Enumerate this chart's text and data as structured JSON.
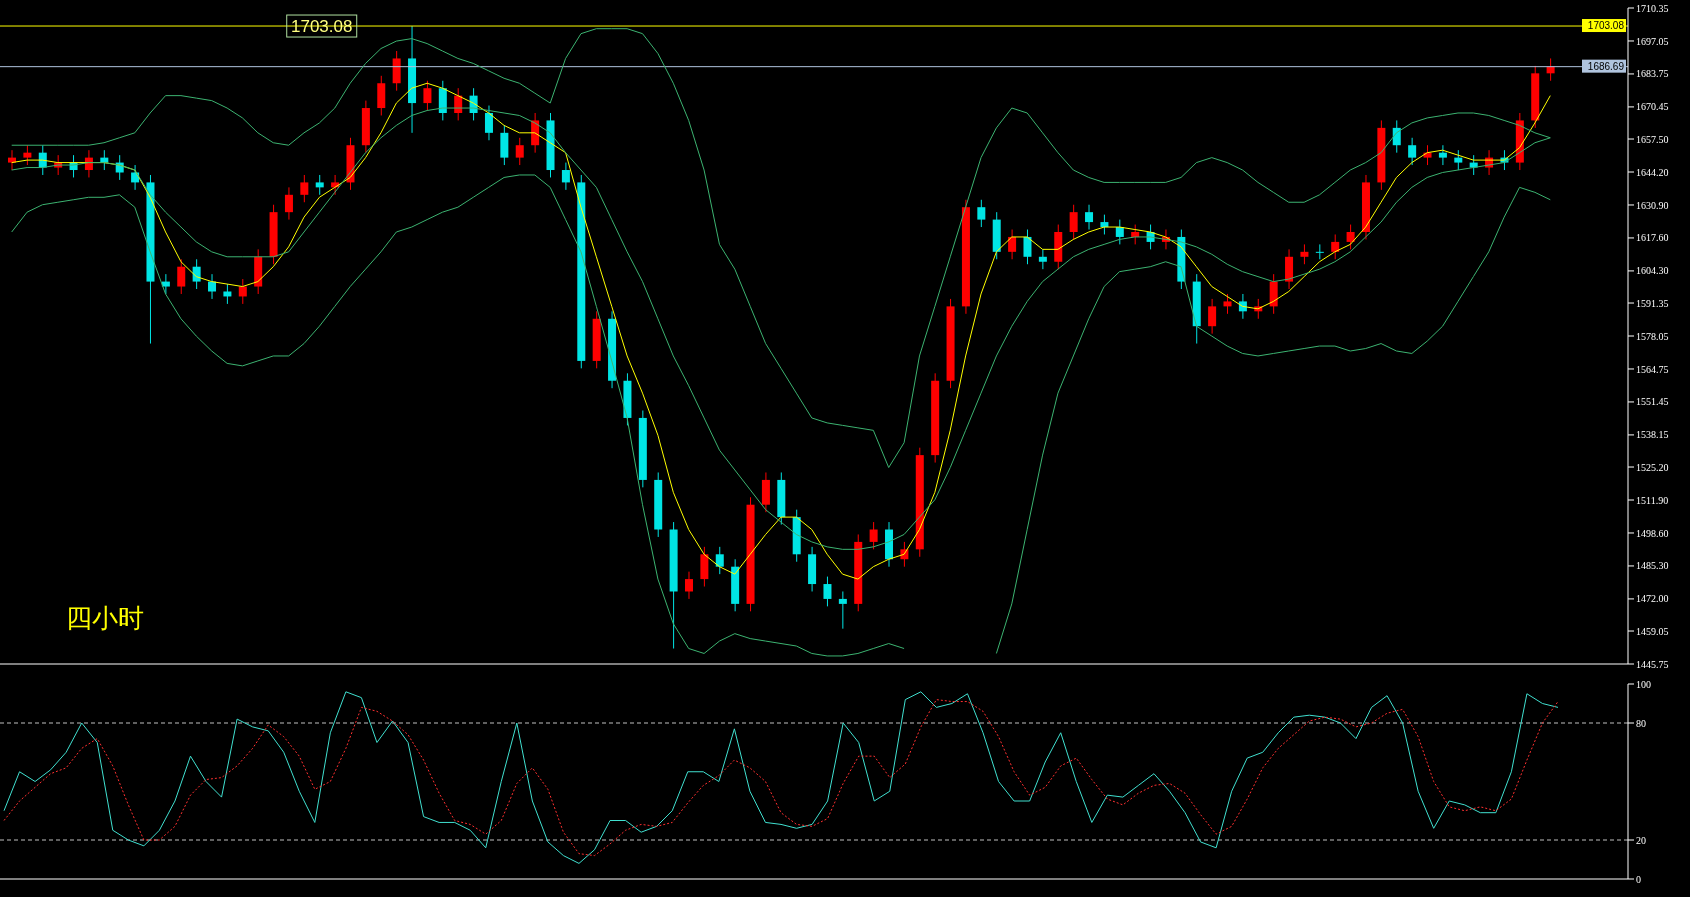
{
  "chart_data": [
    {
      "type": "candlestick",
      "categories": [
        null,
        null,
        null,
        null,
        null,
        null,
        null,
        null,
        null,
        null,
        null,
        null,
        null,
        null,
        null,
        null,
        null,
        null,
        null,
        null,
        null,
        null,
        null,
        null,
        null,
        null,
        null,
        null,
        null,
        null,
        null,
        null,
        null,
        null,
        null,
        null,
        null,
        null,
        null,
        null,
        null,
        null,
        null,
        null,
        null,
        null,
        null,
        null,
        null,
        null,
        null,
        null,
        null,
        null,
        null,
        null,
        null,
        null,
        null,
        null,
        null,
        null,
        null,
        null,
        null,
        null,
        null,
        null,
        null,
        null,
        null,
        null,
        null,
        null,
        null,
        null,
        null,
        null,
        null,
        null,
        null,
        null,
        null,
        null,
        null,
        null,
        null,
        null,
        null,
        null,
        null,
        null,
        null,
        null,
        null,
        null,
        null,
        null,
        null,
        null,
        null
      ],
      "ohlc": [
        [
          1648,
          1653,
          1645,
          1650
        ],
        [
          1650,
          1655,
          1647,
          1652
        ],
        [
          1652,
          1655,
          1643,
          1646
        ],
        [
          1646,
          1651,
          1643,
          1648
        ],
        [
          1648,
          1651,
          1642,
          1645
        ],
        [
          1645,
          1653,
          1642,
          1650
        ],
        [
          1650,
          1653,
          1645,
          1648
        ],
        [
          1648,
          1651,
          1641,
          1644
        ],
        [
          1644,
          1647,
          1637,
          1640
        ],
        [
          1640,
          1643,
          1575,
          1600
        ],
        [
          1600,
          1603,
          1595,
          1598
        ],
        [
          1598,
          1609,
          1595,
          1606
        ],
        [
          1606,
          1609,
          1597,
          1600
        ],
        [
          1600,
          1603,
          1593,
          1596
        ],
        [
          1596,
          1599,
          1591,
          1594
        ],
        [
          1594,
          1601,
          1591,
          1598
        ],
        [
          1598,
          1613,
          1595,
          1610
        ],
        [
          1610,
          1631,
          1607,
          1628
        ],
        [
          1628,
          1638,
          1625,
          1635
        ],
        [
          1635,
          1643,
          1632,
          1640
        ],
        [
          1640,
          1643,
          1635,
          1638
        ],
        [
          1638,
          1643,
          1635,
          1640
        ],
        [
          1640,
          1658,
          1637,
          1655
        ],
        [
          1655,
          1673,
          1652,
          1670
        ],
        [
          1670,
          1683,
          1667,
          1680
        ],
        [
          1680,
          1693,
          1677,
          1690
        ],
        [
          1690,
          1703.08,
          1660,
          1672
        ],
        [
          1672,
          1681,
          1669,
          1678
        ],
        [
          1678,
          1681,
          1665,
          1668
        ],
        [
          1668,
          1678,
          1665,
          1675
        ],
        [
          1675,
          1678,
          1665,
          1668
        ],
        [
          1668,
          1671,
          1657,
          1660
        ],
        [
          1660,
          1663,
          1647,
          1650
        ],
        [
          1650,
          1658,
          1647,
          1655
        ],
        [
          1655,
          1668,
          1652,
          1665
        ],
        [
          1665,
          1668,
          1642,
          1645
        ],
        [
          1645,
          1648,
          1637,
          1640
        ],
        [
          1640,
          1643,
          1565,
          1568
        ],
        [
          1568,
          1588,
          1565,
          1585
        ],
        [
          1585,
          1588,
          1557,
          1560
        ],
        [
          1560,
          1563,
          1542,
          1545
        ],
        [
          1545,
          1548,
          1517,
          1520
        ],
        [
          1520,
          1523,
          1497,
          1500
        ],
        [
          1500,
          1503,
          1452,
          1475
        ],
        [
          1475,
          1483,
          1472,
          1480
        ],
        [
          1480,
          1493,
          1477,
          1490
        ],
        [
          1490,
          1493,
          1482,
          1485
        ],
        [
          1485,
          1488,
          1467,
          1470
        ],
        [
          1470,
          1513,
          1467,
          1510
        ],
        [
          1510,
          1523,
          1507,
          1520
        ],
        [
          1520,
          1523,
          1502,
          1505
        ],
        [
          1505,
          1508,
          1487,
          1490
        ],
        [
          1490,
          1493,
          1475,
          1478
        ],
        [
          1478,
          1481,
          1469,
          1472
        ],
        [
          1472,
          1475,
          1460,
          1470
        ],
        [
          1470,
          1498,
          1467,
          1495
        ],
        [
          1495,
          1503,
          1492,
          1500
        ],
        [
          1500,
          1503,
          1485,
          1488
        ],
        [
          1488,
          1495,
          1485,
          1492
        ],
        [
          1492,
          1533,
          1489,
          1530
        ],
        [
          1530,
          1563,
          1527,
          1560
        ],
        [
          1560,
          1593,
          1557,
          1590
        ],
        [
          1590,
          1633,
          1587,
          1630
        ],
        [
          1630,
          1633,
          1622,
          1625
        ],
        [
          1625,
          1628,
          1609,
          1612
        ],
        [
          1612,
          1621,
          1609,
          1618
        ],
        [
          1618,
          1621,
          1607,
          1610
        ],
        [
          1610,
          1613,
          1605,
          1608
        ],
        [
          1608,
          1623,
          1605,
          1620
        ],
        [
          1620,
          1631,
          1617,
          1628
        ],
        [
          1628,
          1631,
          1621,
          1624
        ],
        [
          1624,
          1627,
          1619,
          1622
        ],
        [
          1622,
          1625,
          1615,
          1618
        ],
        [
          1618,
          1623,
          1615,
          1620
        ],
        [
          1620,
          1623,
          1613,
          1616
        ],
        [
          1616,
          1621,
          1613,
          1618
        ],
        [
          1618,
          1621,
          1597,
          1600
        ],
        [
          1600,
          1603,
          1575,
          1582
        ],
        [
          1582,
          1593,
          1579,
          1590
        ],
        [
          1590,
          1595,
          1587,
          1592
        ],
        [
          1592,
          1595,
          1585,
          1588
        ],
        [
          1588,
          1593,
          1585,
          1590
        ],
        [
          1590,
          1603,
          1587,
          1600
        ],
        [
          1600,
          1613,
          1597,
          1610
        ],
        [
          1610,
          1615,
          1607,
          1612
        ],
        [
          1612,
          1615,
          1609,
          1612
        ],
        [
          1612,
          1619,
          1609,
          1616
        ],
        [
          1616,
          1623,
          1613,
          1620
        ],
        [
          1620,
          1643,
          1617,
          1640
        ],
        [
          1640,
          1665,
          1637,
          1662
        ],
        [
          1662,
          1665,
          1652,
          1655
        ],
        [
          1655,
          1658,
          1647,
          1650
        ],
        [
          1650,
          1655,
          1647,
          1652
        ],
        [
          1652,
          1655,
          1647,
          1650
        ],
        [
          1650,
          1653,
          1645,
          1648
        ],
        [
          1648,
          1651,
          1643,
          1646
        ],
        [
          1646,
          1653,
          1643,
          1650
        ],
        [
          1650,
          1653,
          1645,
          1648
        ],
        [
          1648,
          1668,
          1645,
          1665
        ],
        [
          1665,
          1687,
          1662,
          1684
        ],
        [
          1684,
          1690,
          1681,
          1686.69
        ]
      ],
      "colors": [
        "#ff0000",
        "#ff0000",
        "#00e5e5",
        "#ff0000",
        "#00e5e5",
        "#ff0000",
        "#00e5e5",
        "#00e5e5",
        "#00e5e5",
        "#00e5e5",
        "#00e5e5",
        "#ff0000",
        "#00e5e5",
        "#00e5e5",
        "#00e5e5",
        "#ff0000",
        "#ff0000",
        "#ff0000",
        "#ff0000",
        "#ff0000",
        "#00e5e5",
        "#ff0000",
        "#ff0000",
        "#ff0000",
        "#ff0000",
        "#ff0000",
        "#00e5e5",
        "#ff0000",
        "#00e5e5",
        "#ff0000",
        "#00e5e5",
        "#00e5e5",
        "#00e5e5",
        "#ff0000",
        "#ff0000",
        "#00e5e5",
        "#00e5e5",
        "#00e5e5",
        "#ff0000",
        "#00e5e5",
        "#00e5e5",
        "#00e5e5",
        "#00e5e5",
        "#00e5e5",
        "#ff0000",
        "#ff0000",
        "#00e5e5",
        "#00e5e5",
        "#ff0000",
        "#ff0000",
        "#00e5e5",
        "#00e5e5",
        "#00e5e5",
        "#00e5e5",
        "#00e5e5",
        "#ff0000",
        "#ff0000",
        "#00e5e5",
        "#ff0000",
        "#ff0000",
        "#ff0000",
        "#ff0000",
        "#ff0000",
        "#00e5e5",
        "#00e5e5",
        "#ff0000",
        "#00e5e5",
        "#00e5e5",
        "#ff0000",
        "#ff0000",
        "#00e5e5",
        "#00e5e5",
        "#00e5e5",
        "#ff0000",
        "#00e5e5",
        "#ff0000",
        "#00e5e5",
        "#00e5e5",
        "#ff0000",
        "#ff0000",
        "#00e5e5",
        "#ff0000",
        "#ff0000",
        "#ff0000",
        "#ff0000",
        "#00e5e5",
        "#ff0000",
        "#ff0000",
        "#ff0000",
        "#ff0000",
        "#00e5e5",
        "#00e5e5",
        "#ff0000",
        "#00e5e5",
        "#00e5e5",
        "#00e5e5",
        "#ff0000",
        "#00e5e5",
        "#ff0000",
        "#ff0000",
        "#ff0000"
      ],
      "series": [
        {
          "type": "line",
          "color": "#ffff00",
          "values": [
            1648,
            1649,
            1649,
            1648,
            1648,
            1648,
            1648,
            1647,
            1645,
            1634,
            1620,
            1608,
            1602,
            1600,
            1599,
            1598,
            1600,
            1606,
            1614,
            1626,
            1634,
            1638,
            1642,
            1650,
            1660,
            1672,
            1678,
            1680,
            1678,
            1675,
            1672,
            1668,
            1663,
            1660,
            1660,
            1656,
            1652,
            1630,
            1610,
            1590,
            1570,
            1555,
            1538,
            1515,
            1500,
            1490,
            1485,
            1482,
            1490,
            1498,
            1505,
            1505,
            1500,
            1490,
            1482,
            1480,
            1485,
            1488,
            1490,
            1500,
            1515,
            1540,
            1570,
            1595,
            1612,
            1618,
            1618,
            1613,
            1613,
            1617,
            1620,
            1622,
            1622,
            1621,
            1620,
            1618,
            1614,
            1606,
            1598,
            1594,
            1590,
            1589,
            1592,
            1596,
            1602,
            1608,
            1612,
            1615,
            1622,
            1632,
            1642,
            1648,
            1652,
            1653,
            1651,
            1649,
            1649,
            1649,
            1654,
            1664,
            1675
          ]
        },
        {
          "type": "line",
          "color": "#3cb371",
          "values": [
            1655,
            1655,
            1655,
            1655,
            1655,
            1655,
            1656,
            1658,
            1660,
            1668,
            1675,
            1675,
            1674,
            1673,
            1670,
            1666,
            1660,
            1656,
            1655,
            1660,
            1664,
            1670,
            1680,
            1688,
            1694,
            1697,
            1698,
            1696,
            1693,
            1690,
            1688,
            1685,
            1682,
            1680,
            1676,
            1672,
            1690,
            1700,
            1702,
            1702,
            1702,
            1700,
            1692,
            1680,
            1665,
            1645,
            1615,
            1605,
            1590,
            1575,
            1565,
            1555,
            1545,
            1543,
            1542,
            1541,
            1540,
            1525,
            1535,
            1570,
            1590,
            1610,
            1630,
            1650,
            1662,
            1670,
            1668,
            1660,
            1652,
            1645,
            1642,
            1640,
            1640,
            1640,
            1640,
            1640,
            1642,
            1648,
            1650,
            1648,
            1645,
            1640,
            1636,
            1632,
            1632,
            1635,
            1640,
            1645,
            1648,
            1652,
            1660,
            1664,
            1666,
            1667,
            1668,
            1668,
            1667,
            1665,
            1663,
            1660,
            1658
          ]
        },
        {
          "type": "line",
          "color": "#3cb371",
          "values": [
            1645,
            1646,
            1646,
            1647,
            1647,
            1648,
            1648,
            1647,
            1645,
            1635,
            1628,
            1622,
            1616,
            1612,
            1610,
            1610,
            1610,
            1610,
            1612,
            1620,
            1628,
            1636,
            1644,
            1652,
            1658,
            1663,
            1667,
            1669,
            1670,
            1670,
            1670,
            1669,
            1668,
            1667,
            1664,
            1660,
            1652,
            1645,
            1638,
            1625,
            1612,
            1600,
            1585,
            1570,
            1558,
            1545,
            1532,
            1524,
            1516,
            1508,
            1503,
            1498,
            1495,
            1493,
            1492,
            1492,
            1493,
            1495,
            1498,
            1505,
            1512,
            1525,
            1540,
            1555,
            1570,
            1582,
            1592,
            1600,
            1605,
            1610,
            1613,
            1615,
            1617,
            1618,
            1618,
            1617,
            1616,
            1614,
            1611,
            1607,
            1604,
            1602,
            1600,
            1601,
            1603,
            1605,
            1608,
            1612,
            1618,
            1624,
            1632,
            1638,
            1642,
            1644,
            1645,
            1646,
            1647,
            1648,
            1652,
            1656,
            1658
          ]
        },
        {
          "type": "line",
          "color": "#3cb371",
          "values": [
            1620,
            1628,
            1631,
            1632,
            1633,
            1634,
            1634,
            1635,
            1630,
            1612,
            1595,
            1585,
            1578,
            1572,
            1567,
            1566,
            1568,
            1570,
            1570,
            1575,
            1582,
            1590,
            1598,
            1605,
            1612,
            1620,
            1622,
            1625,
            1628,
            1630,
            1634,
            1638,
            1642,
            1643,
            1643,
            1638,
            1625,
            1612,
            1590,
            1568,
            1545,
            1510,
            1480,
            1462,
            1452,
            1450,
            1455,
            1458,
            1456,
            1455,
            1454,
            1453,
            1450,
            1449,
            1449,
            1450,
            1452,
            1454,
            1452,
            null,
            null,
            null,
            null,
            null,
            1450,
            1470,
            1500,
            1530,
            1555,
            1570,
            1585,
            1598,
            1604,
            1605,
            1606,
            1608,
            1606,
            1582,
            1578,
            1574,
            1571,
            1570,
            1571,
            1572,
            1573,
            1574,
            1574,
            1572,
            1573,
            1575,
            1572,
            1571,
            1576,
            1582,
            1592,
            1602,
            1612,
            1626,
            1638,
            1636,
            1633
          ]
        }
      ],
      "ylim": [
        1445.75,
        1710.35
      ],
      "yticks": [
        1445.75,
        1459.05,
        {
          "value": 1472,
          "label": "1472.00"
        },
        {
          "value": 1485.3,
          "label": "1485.30"
        },
        {
          "value": 1498.6,
          "label": "1498.60"
        },
        {
          "value": 1511.9,
          "label": "1511.90"
        },
        {
          "value": 1525.2,
          "label": "1525.20"
        },
        1538.15,
        1551.45,
        1564.75,
        1578.05,
        1591.35,
        {
          "value": 1604.3,
          "label": "1604.30"
        },
        {
          "value": 1617.6,
          "label": "1617.60"
        },
        {
          "value": 1630.9,
          "label": "1630.90"
        },
        {
          "value": 1644.2,
          "label": "1644.20"
        },
        {
          "value": 1657.5,
          "label": "1657.50"
        },
        1670.45,
        1683.75,
        1697.05,
        1710.35
      ],
      "ref_lines": [
        {
          "axis": "y",
          "value": 1703.08,
          "label": "1703.08",
          "color": "#ffff00"
        },
        {
          "axis": "y",
          "value": 1686.69,
          "label": "1686.69",
          "color": "#b0c4de"
        }
      ],
      "annotations": [
        "四小时",
        {
          "text": "1703.08",
          "y": 1703.08
        }
      ]
    },
    {
      "type": "line",
      "categories": [
        null,
        null,
        null,
        null,
        null,
        null,
        null,
        null,
        null,
        null,
        null,
        null,
        null,
        null,
        null,
        null,
        null,
        null,
        null,
        null,
        null,
        null,
        null,
        null,
        null,
        null,
        null,
        null,
        null,
        null,
        null,
        null,
        null,
        null,
        null,
        null,
        null,
        null,
        null,
        null,
        null,
        null,
        null,
        null,
        null,
        null,
        null,
        null,
        null,
        null,
        null,
        null,
        null,
        null,
        null,
        null,
        null,
        null,
        null,
        null,
        null,
        null,
        null,
        null,
        null,
        null,
        null,
        null,
        null,
        null,
        null,
        null,
        null,
        null,
        null,
        null,
        null,
        null,
        null,
        null,
        null,
        null,
        null,
        null,
        null,
        null,
        null,
        null,
        null,
        null,
        null,
        null,
        null,
        null,
        null,
        null,
        null,
        null,
        null,
        null,
        null
      ],
      "series": [
        {
          "color": "#40e0d0",
          "values": [
            35,
            55,
            50,
            56,
            65,
            80,
            70,
            25,
            20,
            17,
            25,
            40,
            63,
            50,
            42,
            82,
            78,
            76,
            65,
            45,
            29,
            75,
            96,
            93,
            70,
            81,
            70,
            32,
            29,
            29,
            25,
            16,
            50,
            80,
            40,
            19,
            12,
            8,
            15,
            30,
            30,
            24,
            27,
            35,
            55,
            55,
            50,
            77,
            45,
            29,
            28,
            26,
            28,
            40,
            80,
            70,
            40,
            45,
            92,
            96,
            88,
            90,
            95,
            75,
            50,
            40,
            40,
            60,
            75,
            50,
            29,
            43,
            42,
            48,
            54,
            45,
            34,
            19,
            16,
            45,
            62,
            65,
            75,
            83,
            84,
            83,
            80,
            72,
            88,
            94,
            80,
            45,
            26,
            40,
            38,
            34,
            34,
            55,
            95,
            90,
            88
          ]
        },
        {
          "color": "#ff3030",
          "line_style": "dotted",
          "values": [
            30,
            40,
            47,
            54,
            57,
            67,
            72,
            58,
            38,
            20,
            20,
            27,
            43,
            51,
            52,
            58,
            67,
            79,
            73,
            63,
            46,
            50,
            67,
            88,
            86,
            81,
            74,
            61,
            44,
            30,
            28,
            23,
            30,
            49,
            57,
            46,
            24,
            13,
            12,
            18,
            25,
            28,
            27,
            29,
            39,
            48,
            53,
            61,
            57,
            50,
            34,
            28,
            27,
            31,
            49,
            63,
            63,
            52,
            59,
            78,
            92,
            91,
            91,
            86,
            73,
            55,
            43,
            47,
            58,
            62,
            51,
            41,
            38,
            44,
            48,
            49,
            44,
            33,
            23,
            27,
            41,
            57,
            67,
            74,
            81,
            83,
            82,
            78,
            80,
            85,
            87,
            73,
            50,
            37,
            35,
            37,
            35,
            41,
            61,
            80,
            91
          ]
        }
      ],
      "ylim": [
        0,
        100
      ],
      "yticks": [
        0,
        20,
        80,
        100
      ],
      "ref_lines": [
        {
          "axis": "y",
          "value": 80,
          "color": "#c0c0c0",
          "line_style": "dashed"
        },
        {
          "axis": "y",
          "value": 20,
          "color": "#c0c0c0",
          "line_style": "dashed"
        }
      ]
    }
  ]
}
